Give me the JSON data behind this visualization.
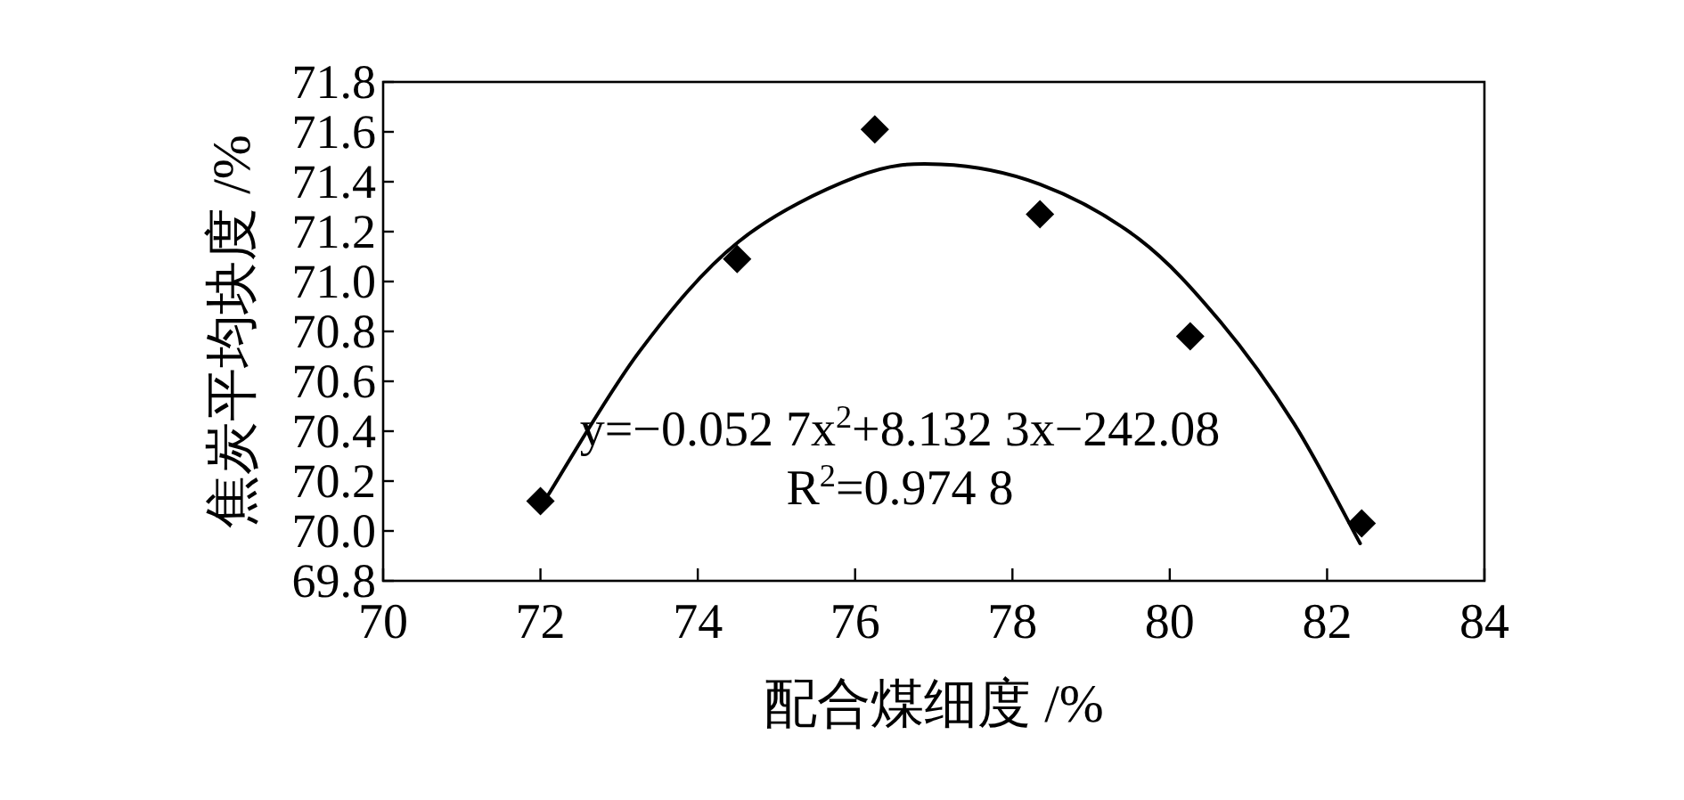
{
  "chart_data": {
    "type": "scatter",
    "xlabel": "配合煤细度 /%",
    "ylabel": "焦炭平均块度 /%",
    "annotations": [
      "y=−0.052 7x$^{2}$+8.132 3x−242.08",
      "R$^{2}$=0.974 8"
    ],
    "xlim": [
      70,
      84
    ],
    "xticks": [
      70,
      72,
      74,
      76,
      78,
      80,
      82,
      84
    ],
    "ylim": [
      69.8,
      71.8
    ],
    "yticks": [
      69.8,
      {
        "value": 70,
        "label": "70.0"
      },
      70.2,
      70.4,
      70.6,
      70.8,
      {
        "value": 71,
        "label": "71.0"
      },
      71.2,
      71.4,
      71.6,
      71.8
    ],
    "grid": false,
    "series": [
      {
        "marker": "diamond",
        "color": "#000000",
        "x": [
          72.0,
          74.5,
          76.25,
          78.35,
          80.26,
          82.44
        ],
        "values": [
          70.12,
          71.09,
          71.61,
          71.27,
          70.78,
          70.03
        ]
      },
      {
        "type": "line",
        "marker": "none",
        "line_style": "solid",
        "color": "#000000",
        "x": [
          72.09,
          73.26,
          74.52,
          76.02,
          77.09,
          78.35,
          79.61,
          80.64,
          81.58,
          82.42
        ],
        "values": [
          70.14,
          70.72,
          71.16,
          71.42,
          71.47,
          71.39,
          71.17,
          70.84,
          70.43,
          69.95
        ]
      }
    ]
  }
}
